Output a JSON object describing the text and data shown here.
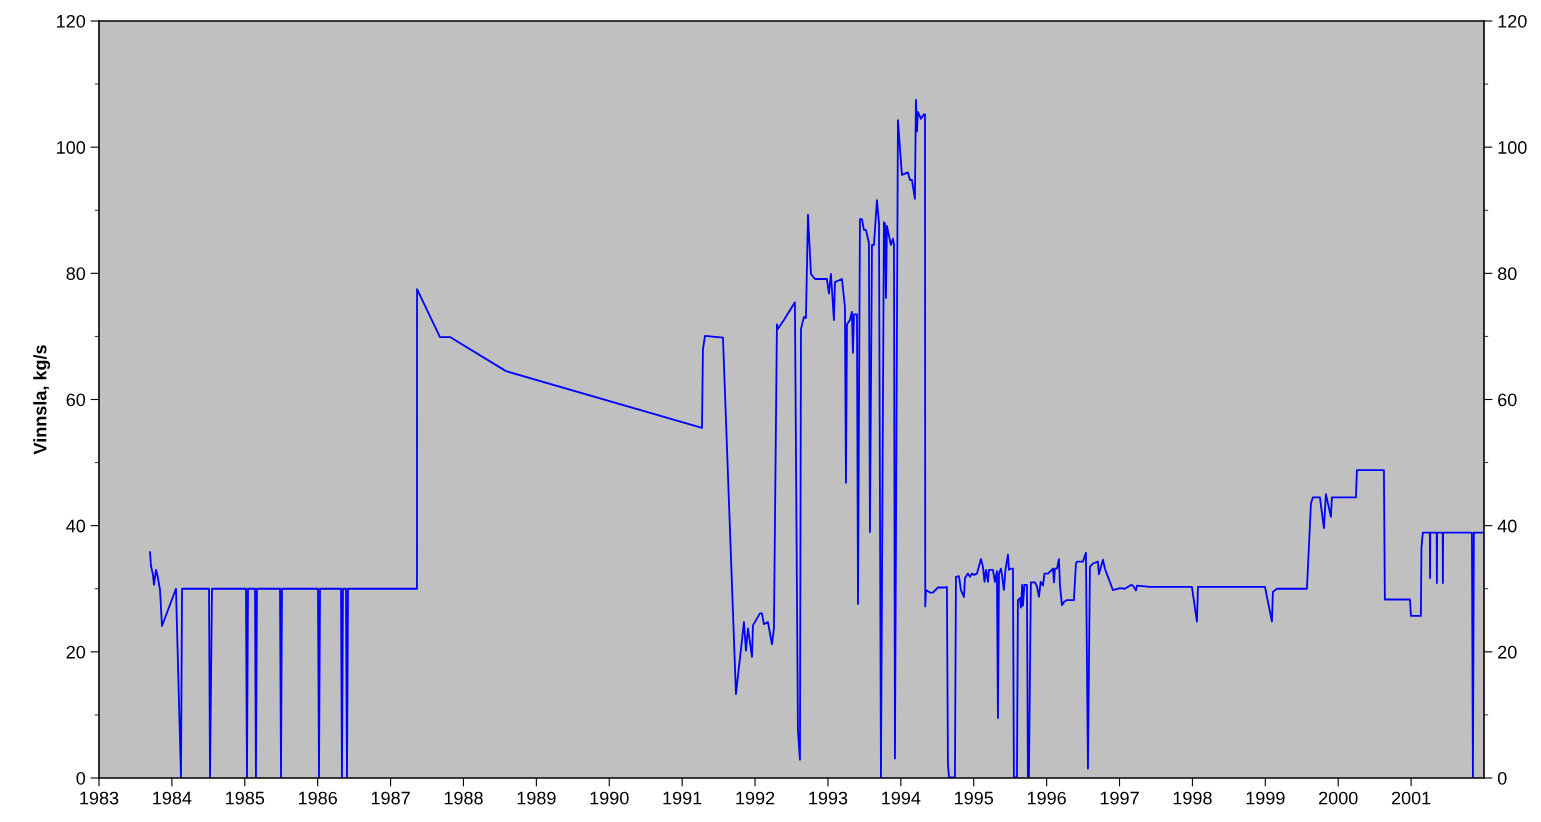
{
  "chart_data": {
    "type": "line",
    "ylabel": "Vinnsla, kg/s",
    "xlim": [
      1983,
      2002
    ],
    "xticks": [
      1983,
      1984,
      1985,
      1986,
      1987,
      1988,
      1989,
      1990,
      1991,
      1992,
      1993,
      1994,
      1995,
      1996,
      1997,
      1998,
      1999,
      2000,
      2001
    ],
    "ylim": [
      0,
      120
    ],
    "yticks": [
      0,
      20,
      40,
      60,
      80,
      100,
      120
    ],
    "y2lim": [
      0,
      120
    ],
    "y2ticks": [
      0,
      20,
      40,
      60,
      80,
      100,
      120
    ],
    "grid": false,
    "marker": "none",
    "line_style": "solid",
    "series": [
      {
        "color": "#0000ff",
        "x": [
          1983.7,
          1983.713,
          1983.741,
          1983.754,
          1983.782,
          1983.809,
          1983.837,
          1983.864,
          1984.056,
          1984.125,
          1984.139,
          1984.509,
          1984.523,
          1984.55,
          1985.016,
          1985.03,
          1985.044,
          1985.14,
          1985.153,
          1985.167,
          1985.483,
          1985.497,
          1985.51,
          1986.004,
          1986.018,
          1986.032,
          1986.32,
          1986.333,
          1986.347,
          1986.388,
          1986.402,
          1986.416,
          1987.362,
          1987.363,
          1987.678,
          1987.815,
          1988.583,
          1991.272,
          1991.285,
          1991.313,
          1991.56,
          1991.738,
          1991.848,
          1991.875,
          1991.903,
          1991.958,
          1991.971,
          1992.067,
          1992.095,
          1992.122,
          1992.177,
          1992.232,
          1992.259,
          1992.3,
          1992.314,
          1992.396,
          1992.547,
          1992.588,
          1992.616,
          1992.63,
          1992.671,
          1992.698,
          1992.726,
          1992.767,
          1992.822,
          1992.986,
          1993.014,
          1993.041,
          1993.082,
          1993.096,
          1993.192,
          1993.233,
          1993.247,
          1993.261,
          1993.302,
          1993.329,
          1993.343,
          1993.357,
          1993.398,
          1993.412,
          1993.439,
          1993.466,
          1993.494,
          1993.521,
          1993.562,
          1993.576,
          1993.604,
          1993.631,
          1993.672,
          1993.7,
          1993.727,
          1993.768,
          1993.782,
          1993.796,
          1993.809,
          1993.864,
          1993.892,
          1993.906,
          1993.919,
          1993.96,
          1994.001,
          1994.015,
          1994.097,
          1994.125,
          1994.152,
          1994.193,
          1994.207,
          1994.221,
          1994.234,
          1994.276,
          1994.317,
          1994.331,
          1994.335,
          1994.344,
          1994.399,
          1994.44,
          1994.509,
          1994.605,
          1994.632,
          1994.646,
          1994.66,
          1994.742,
          1994.756,
          1994.797,
          1994.824,
          1994.866,
          1994.88,
          1994.92,
          1994.948,
          1994.975,
          1995.003,
          1995.044,
          1995.099,
          1995.126,
          1995.148,
          1995.167,
          1995.195,
          1995.208,
          1995.263,
          1995.291,
          1995.318,
          1995.332,
          1995.346,
          1995.373,
          1995.387,
          1995.414,
          1995.435,
          1995.469,
          1995.483,
          1995.51,
          1995.538,
          1995.551,
          1995.565,
          1995.593,
          1995.606,
          1995.634,
          1995.647,
          1995.665,
          1995.675,
          1995.695,
          1995.73,
          1995.743,
          1995.757,
          1995.784,
          1995.84,
          1995.867,
          1995.895,
          1995.918,
          1995.95,
          1995.97,
          1996.018,
          1996.087,
          1996.101,
          1996.114,
          1996.142,
          1996.169,
          1996.183,
          1996.21,
          1996.238,
          1996.278,
          1996.374,
          1996.402,
          1996.416,
          1996.498,
          1996.539,
          1996.567,
          1996.594,
          1996.635,
          1996.704,
          1996.717,
          1996.772,
          1996.799,
          1996.909,
          1997.005,
          1997.074,
          1997.156,
          1997.184,
          1997.225,
          1997.239,
          1997.417,
          1997.993,
          1998.062,
          1998.076,
          1998.995,
          1999.091,
          1999.104,
          1999.159,
          1999.571,
          1999.626,
          1999.653,
          1999.749,
          1999.804,
          1999.831,
          1999.9,
          1999.913,
          2000.243,
          2000.257,
          2000.627,
          2000.64,
          2000.984,
          2000.998,
          2001.134,
          2001.142,
          2001.161,
          2001.257,
          2001.26,
          2001.263,
          2001.351,
          2001.354,
          2001.357,
          2001.433,
          2001.436,
          2001.439,
          2001.834,
          2001.848,
          2001.861,
          2001.985
        ],
        "values": [
          35.8,
          33.6,
          32.2,
          30.6,
          33.0,
          31.7,
          29.8,
          24.1,
          30.0,
          0,
          30,
          30,
          0,
          30,
          30,
          0,
          30,
          30,
          0,
          30,
          30,
          0,
          30,
          30,
          0,
          30,
          30,
          0,
          30,
          30,
          0,
          30,
          30,
          77.5,
          69.9,
          69.9,
          64.5,
          55.5,
          67.9,
          70.1,
          69.8,
          13.3,
          24.7,
          20.2,
          23.7,
          19.2,
          24.2,
          26.1,
          26.1,
          24.4,
          24.7,
          21.2,
          23.7,
          71.9,
          71.2,
          72.6,
          75.4,
          7.6,
          2.9,
          71.2,
          73.1,
          72.9,
          89.3,
          79.9,
          79.1,
          79.1,
          76.8,
          79.9,
          72.6,
          78.6,
          79.1,
          74.7,
          46.8,
          71.9,
          72.6,
          73.9,
          67.4,
          73.5,
          73.5,
          27.6,
          88.6,
          88.6,
          86.9,
          86.9,
          84.8,
          39.0,
          84.5,
          84.5,
          91.6,
          88.0,
          0,
          88.1,
          87.9,
          76.1,
          87.5,
          84.5,
          85.5,
          84.5,
          3.1,
          104.3,
          97.7,
          95.6,
          96.0,
          94.8,
          94.8,
          91.8,
          107.5,
          102.5,
          105.6,
          104.5,
          105.2,
          105.2,
          27.2,
          29.8,
          29.4,
          29.4,
          30.2,
          30.2,
          30.3,
          2.3,
          0.1,
          0.1,
          31.9,
          32.0,
          29.8,
          28.7,
          31.7,
          32.4,
          31.9,
          32.4,
          32.2,
          32.4,
          34.7,
          33.5,
          31.1,
          33.0,
          31.1,
          33.0,
          33.0,
          31.1,
          32.8,
          9.5,
          32.4,
          33.2,
          32.2,
          29.8,
          33.0,
          35.4,
          33.0,
          33.2,
          33.2,
          0.2,
          0.1,
          0.1,
          28.2,
          28.5,
          27.0,
          30.6,
          27.3,
          30.6,
          30.6,
          0.2,
          0.2,
          31.0,
          31.0,
          30.4,
          28.7,
          31.1,
          30.5,
          32.4,
          32.4,
          33.2,
          31.0,
          33.2,
          33.2,
          34.7,
          30.5,
          27.4,
          27.9,
          28.2,
          28.2,
          34.0,
          34.3,
          34.3,
          35.7,
          1.5,
          33.5,
          34.0,
          34.3,
          32.3,
          34.6,
          33.2,
          29.8,
          30.1,
          30.0,
          30.6,
          30.5,
          29.7,
          30.5,
          30.3,
          30.3,
          24.8,
          30.3,
          30.3,
          24.8,
          29.5,
          30.0,
          30.0,
          43.5,
          44.5,
          44.5,
          39.6,
          45.0,
          41.4,
          44.5,
          44.5,
          48.8,
          48.8,
          28.3,
          28.3,
          25.7,
          25.7,
          36.5,
          38.9,
          38.9,
          31.7,
          38.9,
          38.9,
          30.9,
          38.9,
          38.9,
          30.9,
          38.9,
          38.9,
          0,
          38.9,
          38.9
        ]
      }
    ]
  }
}
